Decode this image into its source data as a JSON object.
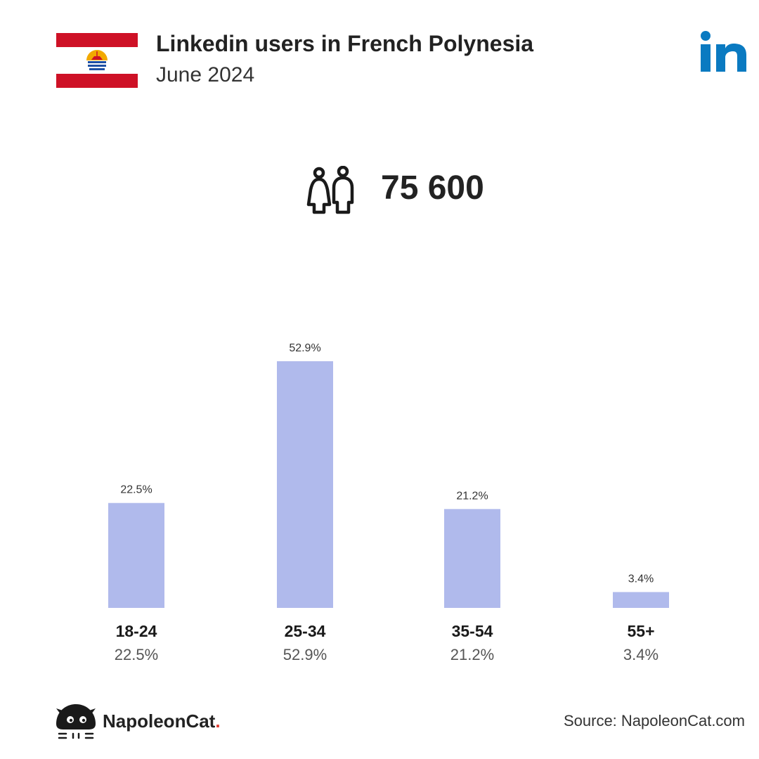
{
  "header": {
    "title": "Linkedin users in French Polynesia",
    "subtitle": "June 2024"
  },
  "summary": {
    "total_users": "75 600"
  },
  "footer": {
    "brand": "NapoleonCat",
    "brand_dot": ".",
    "source": "Source: NapoleonCat.com"
  },
  "icons": {
    "flag": "french-polynesia-flag-icon",
    "logo": "linkedin-logo-icon",
    "users": "users-icon",
    "mascot": "napoleoncat-mascot-icon"
  },
  "colors": {
    "bar": "#b0baec",
    "linkedin": "#0a7ac1",
    "flag_red": "#ce1126",
    "brand_dot": "#e03a2f"
  },
  "chart_data": {
    "type": "bar",
    "categories": [
      "18-24",
      "25-34",
      "35-54",
      "55+"
    ],
    "values": [
      22.5,
      52.9,
      21.2,
      3.4
    ],
    "value_labels": [
      "22.5%",
      "52.9%",
      "21.2%",
      "3.4%"
    ],
    "ylim": [
      0,
      52.9
    ],
    "grid": false,
    "legend": "none"
  }
}
